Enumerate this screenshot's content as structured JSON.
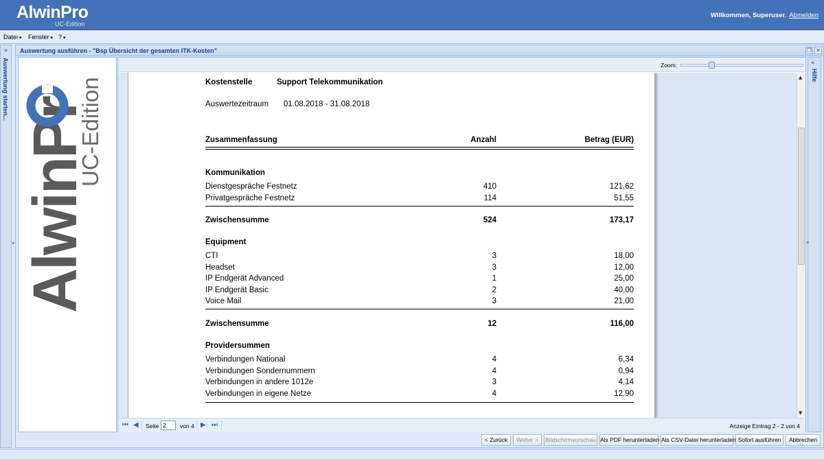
{
  "header": {
    "logo": "AlwinPro",
    "logo_sub": "UC-Edition",
    "welcome": "Willkommen, Superuser.",
    "logout": "Abmelden"
  },
  "menu": {
    "items": [
      "Datei",
      "Fenster",
      "?"
    ]
  },
  "left_panel": {
    "label": "Auswertung starten..."
  },
  "window": {
    "title": "Auswertung ausführen - \"Bsp Übersicht der gesamten ITK-Kosten\""
  },
  "zoom": {
    "label": "Zoom:",
    "level_fraction": 0.24
  },
  "report": {
    "cost_center_label": "Kostenstelle",
    "cost_center_value": "Support Telekommunikation",
    "period_label": "Auswertezeitraum",
    "period_value": "01.08.2018  -  31.08.2018",
    "col_summary": "Zusammenfassung",
    "col_count": "Anzahl",
    "col_amount": "Betrag (EUR)",
    "subtotal_label": "Zwischensumme",
    "sections": [
      {
        "title": "Kommunikation",
        "rows": [
          {
            "label": "Dienstgespräche Festnetz",
            "count": "410",
            "amount": "121,62"
          },
          {
            "label": "Privatgespräche Festnetz",
            "count": "114",
            "amount": "51,55"
          }
        ],
        "subtotal_count": "524",
        "subtotal_amount": "173,17"
      },
      {
        "title": "Equipment",
        "rows": [
          {
            "label": "CTI",
            "count": "3",
            "amount": "18,00"
          },
          {
            "label": "Headset",
            "count": "3",
            "amount": "12,00"
          },
          {
            "label": "IP Endgerät Advanced",
            "count": "1",
            "amount": "25,00"
          },
          {
            "label": "IP Endgerät Basic",
            "count": "2",
            "amount": "40,00"
          },
          {
            "label": "Voice Mail",
            "count": "3",
            "amount": "21,00"
          }
        ],
        "subtotal_count": "12",
        "subtotal_amount": "116,00"
      },
      {
        "title": "Providersummen",
        "rows": [
          {
            "label": "Verbindungen National",
            "count": "4",
            "amount": "6,34"
          },
          {
            "label": "Verbindungen Sondernummern",
            "count": "4",
            "amount": "0,94"
          },
          {
            "label": "Verbindungen in andere 1012e",
            "count": "3",
            "amount": "4,14"
          },
          {
            "label": "Verbindungen in eigene Netze",
            "count": "4",
            "amount": "12,90"
          }
        ]
      }
    ]
  },
  "pager": {
    "page_label": "Seite",
    "page_value": "2",
    "of_label": "von 4",
    "info": "Anzeige Eintrag 2 - 2 von 4"
  },
  "right_panel": {
    "label": "Hilfe"
  },
  "buttons": {
    "back": "< Zurück",
    "next": "Weiter >",
    "preview": "Bildschirmvorschau",
    "pdf": "Als PDF herunterladen",
    "csv": "Als CSV-Datei herunterladen",
    "run": "Sofort ausführen",
    "cancel": "Abbrechen"
  }
}
